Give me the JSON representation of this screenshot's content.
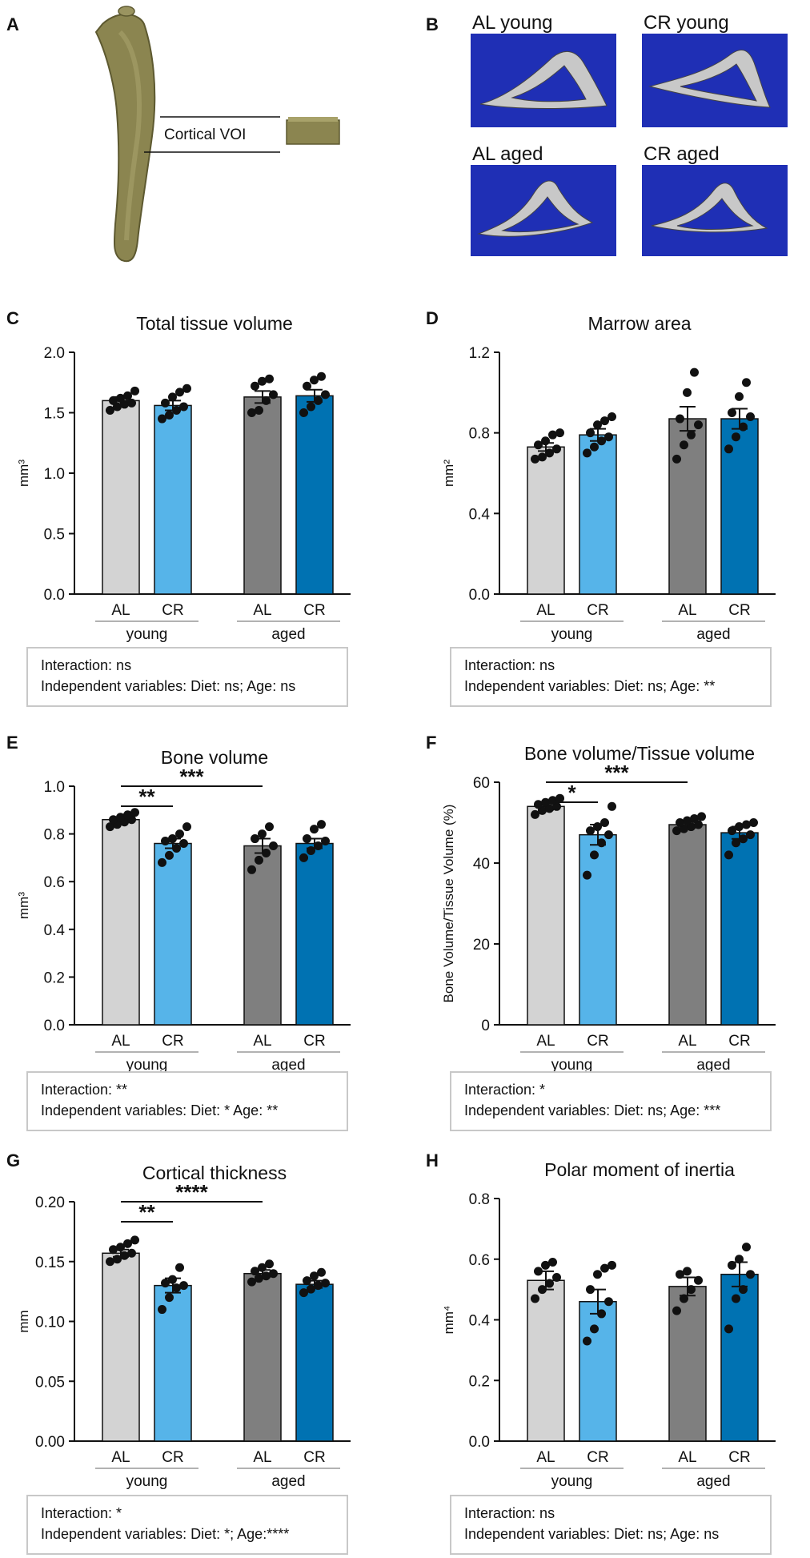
{
  "panels": {
    "A": {
      "letter": "A",
      "voi_label": "Cortical VOI"
    },
    "B": {
      "letter": "B",
      "scans": [
        "AL young",
        "CR young",
        "AL aged",
        "CR aged"
      ]
    }
  },
  "colors": {
    "AL_young": "#d3d3d3",
    "CR_young": "#56b4e9",
    "AL_aged": "#7f7f7f",
    "CR_aged": "#0072b2",
    "scan_bg": "#1f2fb5",
    "bone": "#8b8550"
  },
  "chart_data": [
    {
      "id": "C",
      "type": "bar",
      "title": "Total tissue volume",
      "ylabel": "mm³",
      "ylim": [
        0,
        2.0
      ],
      "yticks": [
        "0.0",
        "0.5",
        "1.0",
        "1.5",
        "2.0"
      ],
      "tickvals": [
        0,
        0.5,
        1.0,
        1.5,
        2.0
      ],
      "categories": [
        "AL",
        "CR",
        "AL",
        "CR"
      ],
      "groups": [
        "young",
        "aged"
      ],
      "values": [
        1.6,
        1.56,
        1.63,
        1.64
      ],
      "sem": [
        0.03,
        0.04,
        0.05,
        0.05
      ],
      "points": [
        [
          1.52,
          1.55,
          1.57,
          1.58,
          1.6,
          1.62,
          1.64,
          1.68
        ],
        [
          1.45,
          1.48,
          1.52,
          1.55,
          1.58,
          1.63,
          1.67,
          1.7
        ],
        [
          1.5,
          1.52,
          1.6,
          1.65,
          1.72,
          1.76,
          1.78
        ],
        [
          1.5,
          1.55,
          1.6,
          1.65,
          1.72,
          1.77,
          1.8
        ]
      ],
      "significance": [],
      "stats": {
        "interaction": "Interaction:  ns",
        "independent": "Independent variables:  Diet:  ns; Age:  ns"
      }
    },
    {
      "id": "D",
      "type": "bar",
      "title": "Marrow area",
      "ylabel": "mm²",
      "ylim": [
        0,
        1.2
      ],
      "yticks": [
        "0.0",
        "0.4",
        "0.8",
        "1.2"
      ],
      "tickvals": [
        0,
        0.4,
        0.8,
        1.2
      ],
      "categories": [
        "AL",
        "CR",
        "AL",
        "CR"
      ],
      "groups": [
        "young",
        "aged"
      ],
      "values": [
        0.73,
        0.79,
        0.87,
        0.87
      ],
      "sem": [
        0.02,
        0.03,
        0.06,
        0.05
      ],
      "points": [
        [
          0.67,
          0.68,
          0.7,
          0.72,
          0.74,
          0.76,
          0.79,
          0.8
        ],
        [
          0.7,
          0.73,
          0.76,
          0.78,
          0.8,
          0.84,
          0.86,
          0.88
        ],
        [
          0.67,
          0.74,
          0.79,
          0.84,
          0.87,
          1.0,
          1.1
        ],
        [
          0.72,
          0.78,
          0.83,
          0.88,
          0.9,
          0.98,
          1.05
        ]
      ],
      "significance": [],
      "stats": {
        "interaction": "Interaction:  ns",
        "independent": "Independent variables:  Diet:  ns; Age:  **"
      }
    },
    {
      "id": "E",
      "type": "bar",
      "title": "Bone volume",
      "ylabel": "mm³",
      "ylim": [
        0,
        1.0
      ],
      "yticks": [
        "0.0",
        "0.2",
        "0.4",
        "0.6",
        "0.8",
        "1.0"
      ],
      "tickvals": [
        0,
        0.2,
        0.4,
        0.6,
        0.8,
        1.0
      ],
      "categories": [
        "AL",
        "CR",
        "AL",
        "CR"
      ],
      "groups": [
        "young",
        "aged"
      ],
      "values": [
        0.86,
        0.76,
        0.75,
        0.76
      ],
      "sem": [
        0.01,
        0.02,
        0.03,
        0.02
      ],
      "points": [
        [
          0.83,
          0.84,
          0.85,
          0.86,
          0.86,
          0.87,
          0.88,
          0.89
        ],
        [
          0.68,
          0.71,
          0.74,
          0.76,
          0.77,
          0.78,
          0.8,
          0.83
        ],
        [
          0.65,
          0.69,
          0.72,
          0.75,
          0.78,
          0.8,
          0.83
        ],
        [
          0.7,
          0.73,
          0.75,
          0.77,
          0.78,
          0.82,
          0.84
        ]
      ],
      "significance": [
        {
          "from": 0,
          "to": 1,
          "label": "**"
        },
        {
          "from": 0,
          "to": 2,
          "label": "***"
        }
      ],
      "stats": {
        "interaction": "Interaction:  **",
        "independent": "Independent variables:  Diet:  * Age:  **"
      }
    },
    {
      "id": "F",
      "type": "bar",
      "title": "Bone volume/Tissue volume",
      "ylabel": "Bone Volume/Tissue Volume (%)",
      "ylim": [
        0,
        60
      ],
      "yticks": [
        "0",
        "20",
        "40",
        "60"
      ],
      "tickvals": [
        0,
        20,
        40,
        60
      ],
      "categories": [
        "AL",
        "CR",
        "AL",
        "CR"
      ],
      "groups": [
        "young",
        "aged"
      ],
      "values": [
        54,
        47,
        49.5,
        47.5
      ],
      "sem": [
        0.8,
        2.5,
        0.8,
        1.5
      ],
      "points": [
        [
          52,
          53,
          53.5,
          54,
          54.5,
          55,
          55.5,
          56
        ],
        [
          37,
          42,
          45,
          47,
          48,
          49,
          50,
          54
        ],
        [
          48,
          48.5,
          49,
          49.5,
          50,
          50.5,
          51,
          51.5
        ],
        [
          42,
          45,
          46,
          47,
          48,
          49,
          49.5,
          50
        ]
      ],
      "significance": [
        {
          "from": 0,
          "to": 1,
          "label": "*"
        },
        {
          "from": 0,
          "to": 2,
          "label": "***"
        }
      ],
      "stats": {
        "interaction": "Interaction:  *",
        "independent": "Independent variables:  Diet:  ns; Age:  ***"
      }
    },
    {
      "id": "G",
      "type": "bar",
      "title": "Cortical thickness",
      "ylabel": "mm",
      "ylim": [
        0,
        0.2
      ],
      "yticks": [
        "0.00",
        "0.05",
        "0.10",
        "0.15",
        "0.20"
      ],
      "tickvals": [
        0,
        0.05,
        0.1,
        0.15,
        0.2
      ],
      "categories": [
        "AL",
        "CR",
        "AL",
        "CR"
      ],
      "groups": [
        "young",
        "aged"
      ],
      "values": [
        0.157,
        0.13,
        0.14,
        0.131
      ],
      "sem": [
        0.003,
        0.006,
        0.003,
        0.003
      ],
      "points": [
        [
          0.15,
          0.152,
          0.155,
          0.157,
          0.16,
          0.162,
          0.165,
          0.168
        ],
        [
          0.11,
          0.12,
          0.128,
          0.13,
          0.132,
          0.135,
          0.145
        ],
        [
          0.133,
          0.136,
          0.138,
          0.14,
          0.142,
          0.145,
          0.148
        ],
        [
          0.124,
          0.127,
          0.13,
          0.132,
          0.134,
          0.138,
          0.141
        ]
      ],
      "significance": [
        {
          "from": 0,
          "to": 1,
          "label": "**"
        },
        {
          "from": 0,
          "to": 2,
          "label": "****"
        }
      ],
      "stats": {
        "interaction": "Interaction:  *",
        "independent": "Independent variables:  Diet:  *; Age:****"
      }
    },
    {
      "id": "H",
      "type": "bar",
      "title": "Polar moment of inertia",
      "ylabel": "mm⁴",
      "ylim": [
        0,
        0.8
      ],
      "yticks": [
        "0.0",
        "0.2",
        "0.4",
        "0.6",
        "0.8"
      ],
      "tickvals": [
        0,
        0.2,
        0.4,
        0.6,
        0.8
      ],
      "categories": [
        "AL",
        "CR",
        "AL",
        "CR"
      ],
      "groups": [
        "young",
        "aged"
      ],
      "values": [
        0.53,
        0.46,
        0.51,
        0.55
      ],
      "sem": [
        0.03,
        0.04,
        0.03,
        0.04
      ],
      "points": [
        [
          0.47,
          0.5,
          0.52,
          0.54,
          0.56,
          0.58,
          0.59
        ],
        [
          0.33,
          0.37,
          0.42,
          0.46,
          0.5,
          0.55,
          0.57,
          0.58
        ],
        [
          0.43,
          0.47,
          0.5,
          0.53,
          0.55,
          0.56
        ],
        [
          0.37,
          0.47,
          0.5,
          0.55,
          0.58,
          0.6,
          0.64
        ]
      ],
      "significance": [],
      "stats": {
        "interaction": "Interaction:  ns",
        "independent": "Independent variables:  Diet:  ns; Age:  ns"
      }
    }
  ]
}
